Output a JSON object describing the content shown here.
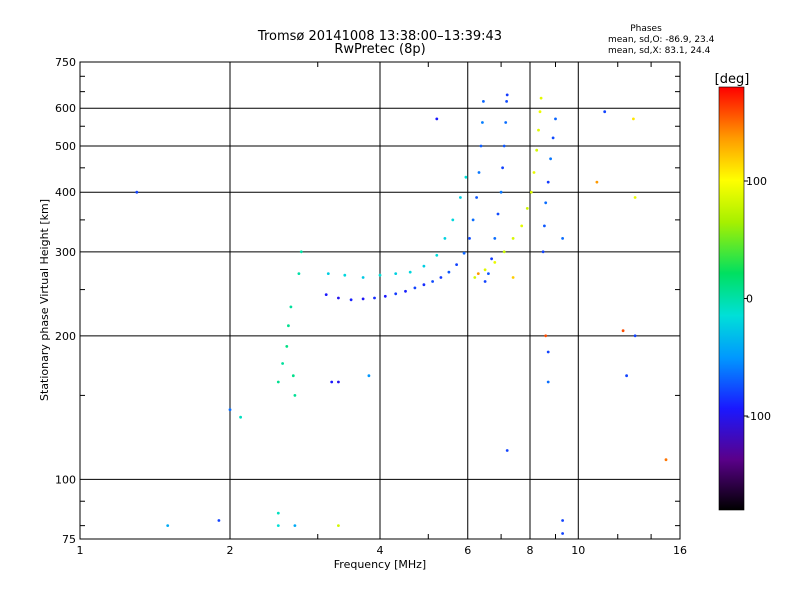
{
  "title": {
    "line1": "Tromsø 20141008 13:38:00–13:39:43",
    "line2": "RwPretec (8p)"
  },
  "stats": {
    "header": "Phases",
    "line_o": "mean, sd,O: -86.9, 23.4",
    "line_x": "mean, sd,X:  83.1, 24.4"
  },
  "colorbar": {
    "unit": "[deg]",
    "range": [
      -180,
      180
    ],
    "ticks": [
      100,
      0,
      -100
    ],
    "tick_labels": [
      "100",
      "0",
      "-100"
    ]
  },
  "chart_data": {
    "type": "scatter",
    "xlabel": "Frequency [MHz]",
    "ylabel": "Stationary phase Virtual Height [km]",
    "xscale": "log",
    "yscale": "log",
    "xlim": [
      1,
      16
    ],
    "ylim": [
      75,
      750
    ],
    "xticks": [
      1,
      2,
      4,
      6,
      8,
      10,
      16
    ],
    "xtick_labels": [
      "1",
      "2",
      "4",
      "6",
      "8",
      "10",
      "16"
    ],
    "yticks": [
      75,
      100,
      200,
      300,
      400,
      500,
      600,
      750
    ],
    "ytick_labels": [
      "75",
      "100",
      "200",
      "300",
      "400",
      "500",
      "600",
      "750"
    ],
    "grid": true,
    "color_variable": "phase (deg)",
    "series": [
      {
        "points": [
          [
            3.12,
            244,
            -120
          ],
          [
            3.3,
            240,
            -125
          ],
          [
            3.5,
            238,
            -118
          ],
          [
            3.7,
            239,
            -122
          ],
          [
            3.9,
            240,
            -115
          ],
          [
            4.1,
            242,
            -120
          ],
          [
            4.3,
            245,
            -112
          ],
          [
            4.5,
            248,
            -118
          ],
          [
            4.7,
            252,
            -110
          ],
          [
            4.9,
            256,
            -115
          ],
          [
            5.1,
            260,
            -108
          ],
          [
            5.3,
            265,
            -112
          ],
          [
            5.5,
            272,
            -105
          ],
          [
            5.7,
            282,
            -110
          ],
          [
            5.9,
            298,
            -102
          ],
          [
            6.05,
            320,
            -108
          ],
          [
            6.15,
            350,
            -100
          ],
          [
            6.25,
            390,
            -105
          ],
          [
            6.32,
            440,
            -98
          ],
          [
            6.38,
            500,
            -104
          ],
          [
            6.42,
            560,
            -96
          ],
          [
            6.45,
            620,
            -102
          ]
        ]
      },
      {
        "points": [
          [
            3.15,
            270,
            -60
          ],
          [
            3.4,
            268,
            -55
          ],
          [
            3.7,
            265,
            -62
          ],
          [
            4.0,
            268,
            -50
          ],
          [
            4.3,
            270,
            -58
          ],
          [
            4.6,
            272,
            -55
          ],
          [
            4.9,
            280,
            -60
          ],
          [
            5.2,
            295,
            -52
          ],
          [
            5.4,
            320,
            -58
          ],
          [
            5.6,
            350,
            -55
          ],
          [
            5.8,
            390,
            -60
          ],
          [
            5.95,
            430,
            -50
          ]
        ]
      },
      {
        "points": [
          [
            6.5,
            260,
            -110
          ],
          [
            6.6,
            270,
            -105
          ],
          [
            6.7,
            290,
            -112
          ],
          [
            6.8,
            320,
            -100
          ],
          [
            6.9,
            360,
            -108
          ],
          [
            7.0,
            400,
            -98
          ],
          [
            7.05,
            450,
            -110
          ],
          [
            7.1,
            500,
            -105
          ],
          [
            7.15,
            560,
            -100
          ],
          [
            7.18,
            620,
            -108
          ],
          [
            7.2,
            640,
            -112
          ]
        ]
      },
      {
        "points": [
          [
            6.2,
            265,
            80
          ],
          [
            6.5,
            275,
            85
          ],
          [
            6.8,
            285,
            90
          ],
          [
            7.1,
            300,
            75
          ],
          [
            7.4,
            320,
            82
          ],
          [
            7.7,
            340,
            88
          ],
          [
            7.9,
            370,
            78
          ],
          [
            8.05,
            400,
            84
          ],
          [
            8.15,
            440,
            90
          ],
          [
            8.25,
            490,
            80
          ],
          [
            8.32,
            540,
            86
          ],
          [
            8.38,
            590,
            92
          ],
          [
            8.42,
            630,
            88
          ]
        ]
      },
      {
        "points": [
          [
            8.5,
            300,
            -110
          ],
          [
            8.55,
            340,
            -105
          ],
          [
            8.6,
            380,
            -100
          ],
          [
            8.7,
            420,
            -112
          ],
          [
            8.8,
            470,
            -98
          ],
          [
            8.9,
            520,
            -108
          ],
          [
            9.0,
            570,
            -102
          ]
        ]
      },
      {
        "points": [
          [
            2.5,
            160,
            -20
          ],
          [
            2.55,
            175,
            -25
          ],
          [
            2.6,
            190,
            -15
          ],
          [
            2.62,
            210,
            -20
          ],
          [
            2.65,
            230,
            -25
          ],
          [
            2.68,
            165,
            -18
          ],
          [
            2.7,
            150,
            -22
          ],
          [
            2.75,
            270,
            -30
          ],
          [
            2.78,
            300,
            -28
          ]
        ]
      }
    ],
    "scattered_points": [
      [
        1.3,
        400,
        -110
      ],
      [
        2.0,
        140,
        -100
      ],
      [
        2.1,
        135,
        -40
      ],
      [
        3.2,
        160,
        -120
      ],
      [
        3.3,
        160,
        -125
      ],
      [
        3.8,
        165,
        -90
      ],
      [
        5.2,
        570,
        -120
      ],
      [
        6.3,
        270,
        140
      ],
      [
        7.2,
        115,
        -110
      ],
      [
        7.4,
        265,
        120
      ],
      [
        8.6,
        200,
        160
      ],
      [
        8.7,
        160,
        -100
      ],
      [
        8.7,
        185,
        -110
      ],
      [
        9.3,
        320,
        -100
      ],
      [
        10.9,
        420,
        140
      ],
      [
        11.3,
        590,
        -110
      ],
      [
        12.3,
        205,
        160
      ],
      [
        12.5,
        165,
        -110
      ],
      [
        12.9,
        570,
        110
      ],
      [
        13.0,
        390,
        90
      ],
      [
        13.0,
        200,
        -110
      ],
      [
        15.0,
        110,
        150
      ],
      [
        1.5,
        80,
        -80
      ],
      [
        1.9,
        82,
        -110
      ],
      [
        2.5,
        85,
        -40
      ],
      [
        2.5,
        80,
        -50
      ],
      [
        2.7,
        80,
        -80
      ],
      [
        3.3,
        80,
        80
      ],
      [
        9.3,
        82,
        -110
      ],
      [
        9.3,
        77,
        -110
      ]
    ]
  }
}
